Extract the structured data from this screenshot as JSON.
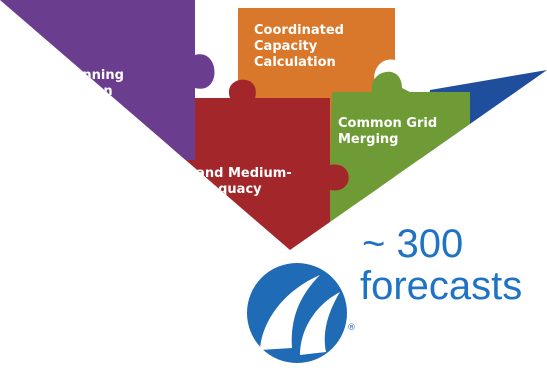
{
  "puzzle": {
    "piece_purple_label_line1": "tage Planning",
    "piece_purple_label_line2": "dination",
    "piece_orange_label_line1": "Coordinated",
    "piece_orange_label_line2": "Capacity",
    "piece_orange_label_line3": "Calculation",
    "piece_green_label_line1": "Common Grid",
    "piece_green_label_line2": "Merging",
    "piece_red_label_line1": "t- and Medium-",
    "piece_red_label_line2": "dequacy"
  },
  "forecast": {
    "line1": "~ 300",
    "line2": "forecasts"
  },
  "logo": {
    "registered_mark": "®"
  },
  "colors": {
    "purple": "#6a3d8f",
    "orange": "#d9772a",
    "green": "#6e9b35",
    "red": "#a3262a",
    "blue": "#1f4e9c",
    "accent_text": "#1f73c4"
  }
}
